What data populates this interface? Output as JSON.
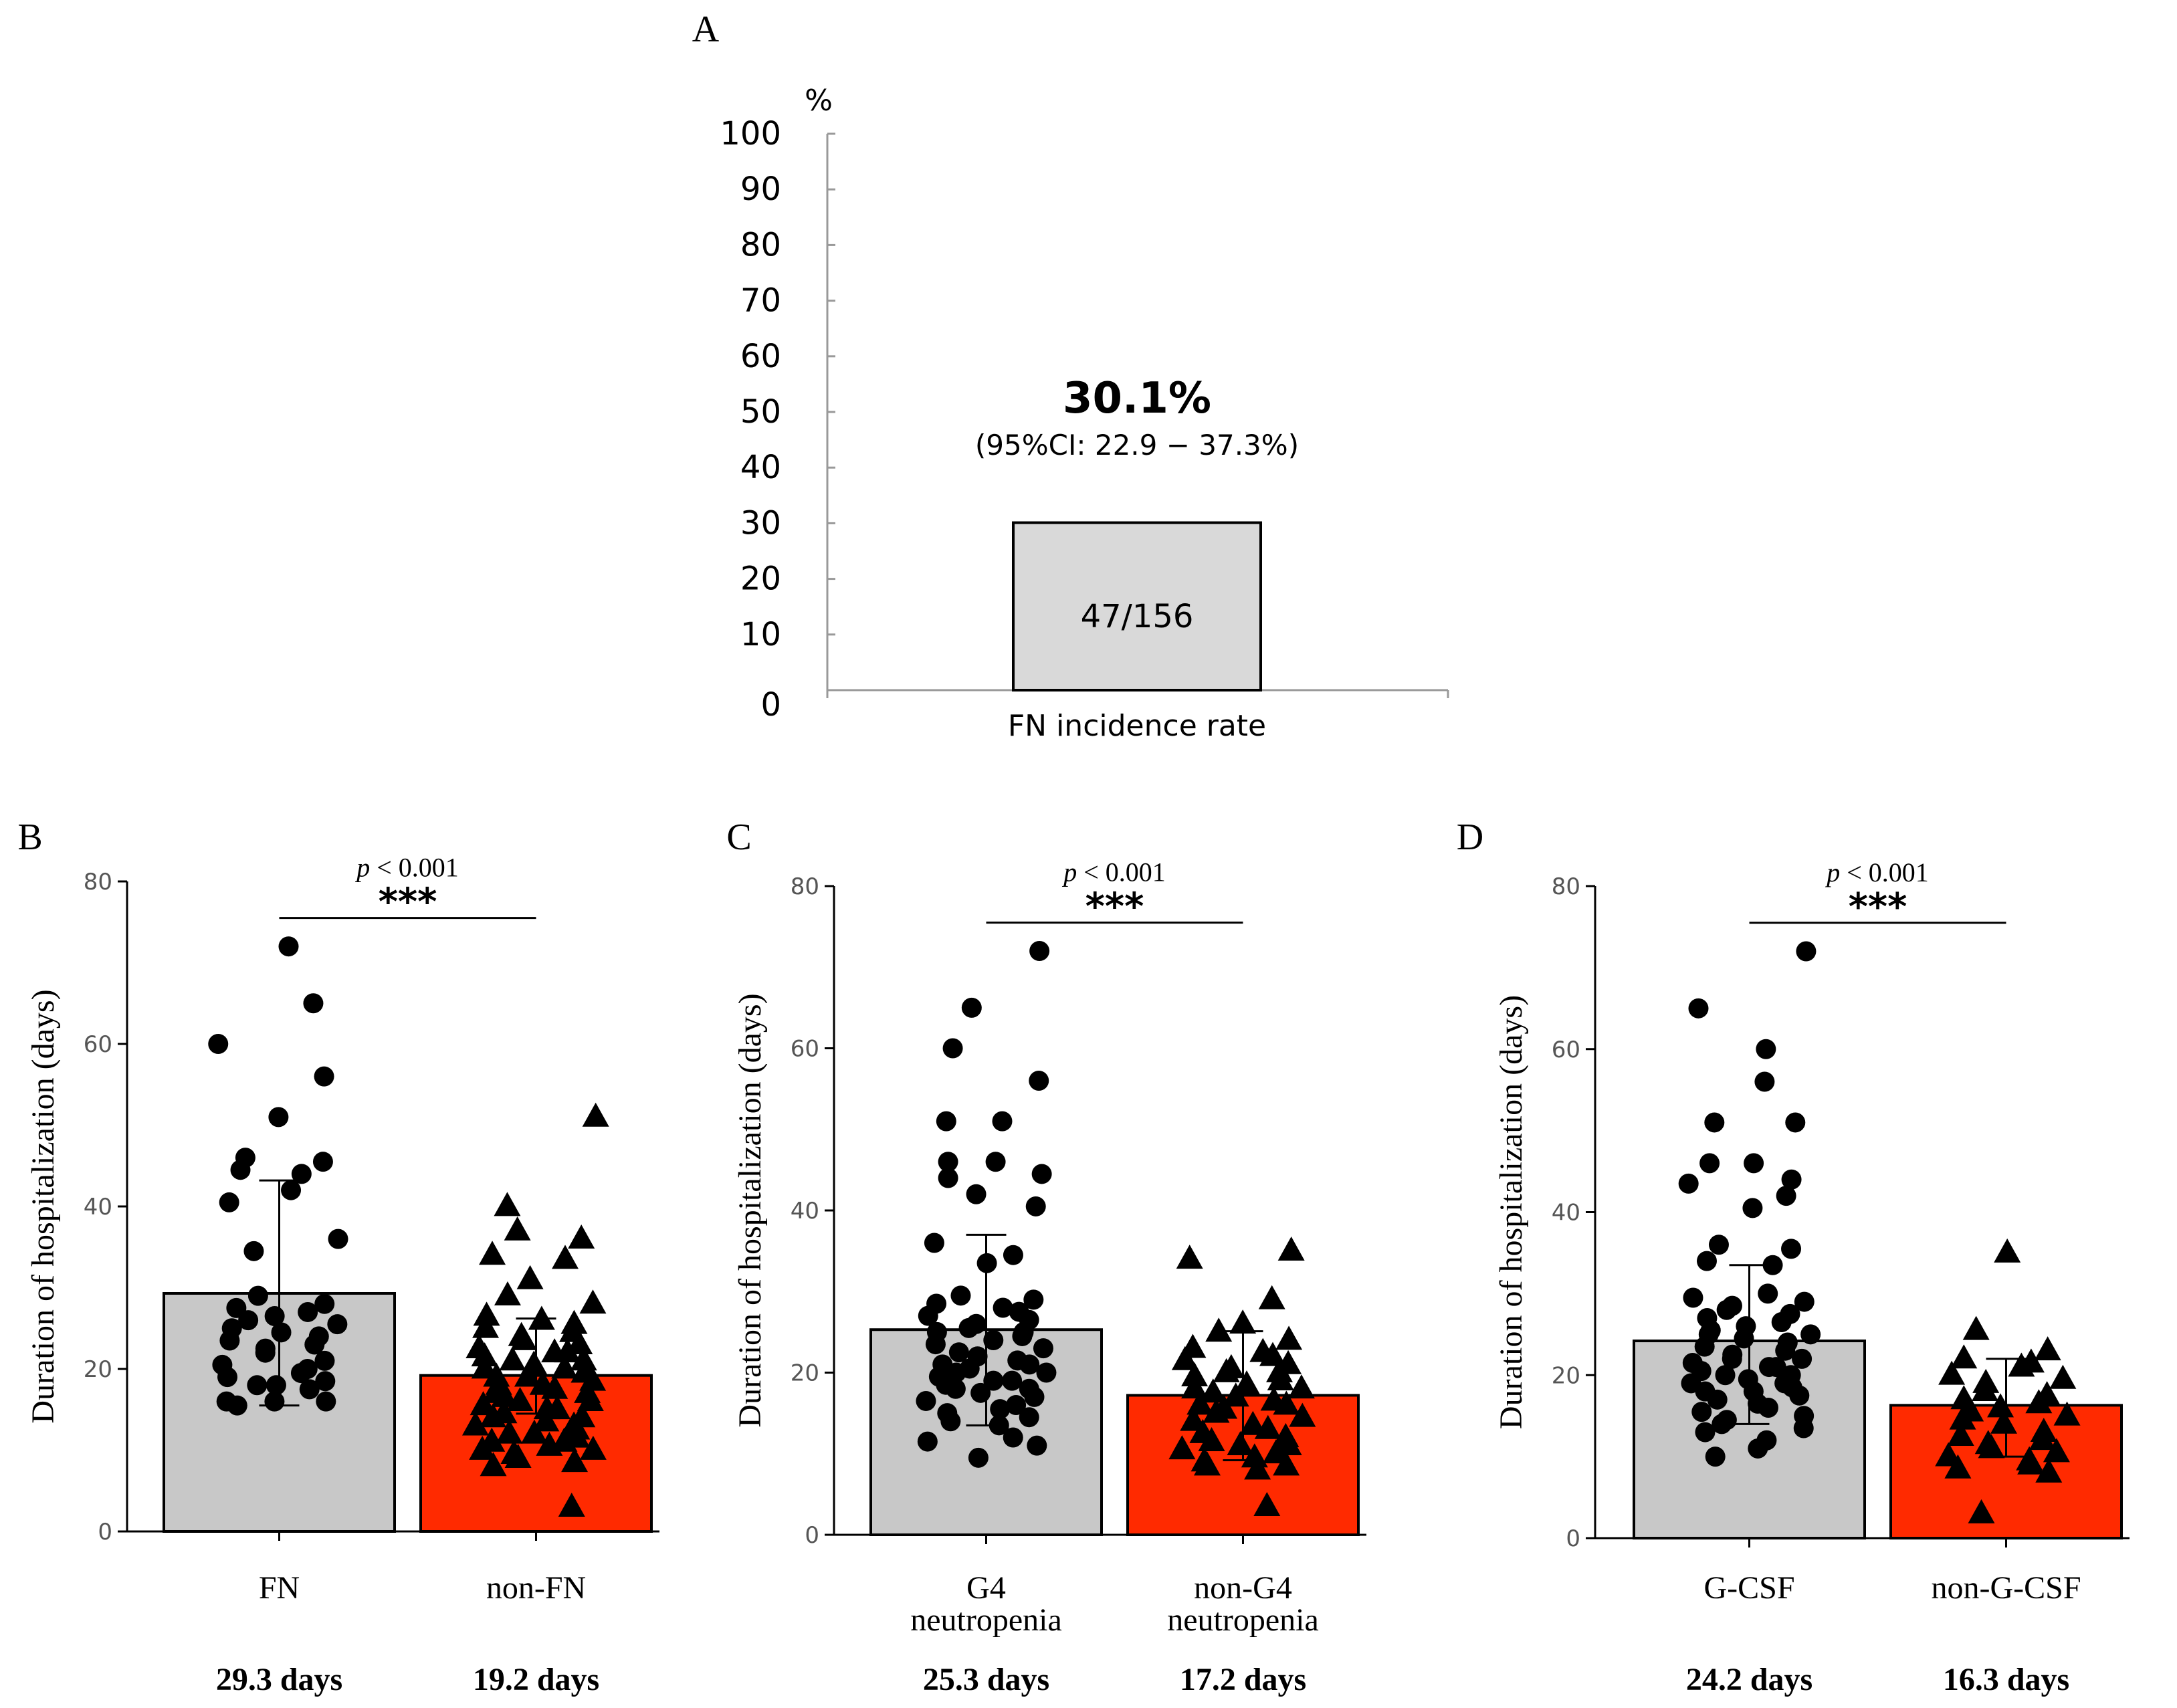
{
  "colors": {
    "gray_bar": "#c8c8c8",
    "gray_bar_a": "#d9d9d9",
    "red_bar": "#ff2a00",
    "ink": "#000000",
    "axis_gray": "#999999"
  },
  "chart_data": [
    {
      "panel": "A",
      "type": "bar",
      "ylabel_unit": "%",
      "ylim": [
        0,
        100
      ],
      "yticks": [
        0,
        10,
        20,
        30,
        40,
        50,
        60,
        70,
        80,
        90,
        100
      ],
      "ytick_labels": [
        "0",
        "10",
        "20",
        "30",
        "40",
        "50",
        "60",
        "70",
        "80",
        "90",
        "100"
      ],
      "categories": [
        "FN incidence rate"
      ],
      "values": [
        30.1
      ],
      "bar_label": "47/156",
      "headline": "30.1%",
      "ci_text": "(95%CI: 22.9 − 37.3%)"
    },
    {
      "panel": "B",
      "type": "bar",
      "ylabel": "Duration of hospitalization (days)",
      "ylim": [
        0,
        80
      ],
      "yticks": [
        0,
        20,
        40,
        60,
        80
      ],
      "ytick_labels": [
        "0",
        "20",
        "40",
        "60",
        "80"
      ],
      "categories": [
        "FN",
        "non-FN"
      ],
      "category_lines": [
        [
          "FN"
        ],
        [
          "non-FN"
        ]
      ],
      "values": [
        29.3,
        19.2
      ],
      "value_labels": [
        "29.3 days",
        "19.2 days"
      ],
      "error_bars": [
        [
          15.5,
          43.2
        ],
        [
          14.5,
          26.2
        ]
      ],
      "significance": "***",
      "p_value_text": "< 0.001",
      "p_symbol": "p",
      "points": [
        {
          "marker": "circle",
          "y": [
            72,
            65,
            60,
            56,
            51,
            46,
            45.5,
            44.5,
            44,
            42,
            40.5,
            36,
            34.5,
            29,
            28,
            27.5,
            27,
            26.5,
            26,
            25.5,
            25,
            24.5,
            24,
            23.5,
            23,
            22.5,
            22,
            21,
            20.5,
            20,
            19.5,
            19,
            18.5,
            18,
            18,
            17.5,
            16,
            16,
            16,
            15.5
          ]
        },
        {
          "marker": "triangle",
          "y": [
            51,
            40,
            37,
            36,
            34,
            33.5,
            31,
            29,
            28,
            26.5,
            26,
            25.5,
            25,
            24.5,
            24,
            23.5,
            23,
            22.5,
            22,
            22,
            21.5,
            21,
            21,
            20.5,
            20,
            20,
            19.5,
            19,
            19,
            18.5,
            18,
            18,
            17.5,
            17,
            17,
            16.5,
            16,
            16,
            15.5,
            15,
            15,
            14.5,
            14,
            14,
            13.5,
            13,
            13,
            12.5,
            12,
            12,
            11.5,
            11,
            11,
            10.5,
            10,
            10,
            9.5,
            9,
            8.5,
            8,
            3
          ]
        }
      ]
    },
    {
      "panel": "C",
      "type": "bar",
      "ylabel": "Duration of hospitalization (days)",
      "ylim": [
        0,
        80
      ],
      "yticks": [
        0,
        20,
        40,
        60,
        80
      ],
      "ytick_labels": [
        "0",
        "20",
        "40",
        "60",
        "80"
      ],
      "categories": [
        "G4 neutropenia",
        "non-G4 neutropenia"
      ],
      "category_lines": [
        [
          "G4",
          "neutropenia"
        ],
        [
          "non-G4",
          "neutropenia"
        ]
      ],
      "values": [
        25.3,
        17.2
      ],
      "value_labels": [
        "25.3 days",
        "17.2 days"
      ],
      "error_bars": [
        [
          13.5,
          37.0
        ],
        [
          9.2,
          25.1
        ]
      ],
      "significance": "***",
      "p_value_text": "< 0.001",
      "p_symbol": "p",
      "points": [
        {
          "marker": "circle",
          "y": [
            72,
            65,
            60,
            56,
            51,
            51,
            46,
            46,
            44.5,
            44,
            42,
            40.5,
            36,
            34.5,
            33.5,
            29.5,
            29,
            28.5,
            28,
            27.5,
            27,
            26.5,
            26,
            25.5,
            25,
            25,
            24.5,
            24,
            23.5,
            23,
            22.5,
            22,
            21.5,
            21,
            21,
            20.5,
            20,
            20,
            19.5,
            19,
            19,
            18.5,
            18,
            18,
            17.5,
            17,
            16.5,
            16,
            15.5,
            15,
            14.5,
            14,
            13.5,
            12,
            11.5,
            11,
            9.5
          ]
        },
        {
          "marker": "triangle",
          "y": [
            35,
            34,
            29,
            26,
            25,
            24,
            23,
            22.5,
            22,
            21.5,
            21,
            20.5,
            20,
            20,
            19.5,
            19,
            18.5,
            18,
            18,
            17.5,
            17,
            16.5,
            16,
            16,
            15.5,
            15,
            14.5,
            14,
            13.5,
            13,
            12.5,
            12,
            11.5,
            11,
            11,
            10.5,
            10,
            9.5,
            9,
            8.5,
            8.5,
            8,
            3.5
          ]
        }
      ]
    },
    {
      "panel": "D",
      "type": "bar",
      "ylabel": "Duration of hospitalization (days)",
      "ylim": [
        0,
        80
      ],
      "yticks": [
        0,
        20,
        40,
        60,
        80
      ],
      "ytick_labels": [
        "0",
        "20",
        "40",
        "60",
        "80"
      ],
      "categories": [
        "G-CSF",
        "non-G-CSF"
      ],
      "category_lines": [
        [
          "G-CSF"
        ],
        [
          "non-G-CSF"
        ]
      ],
      "values": [
        24.2,
        16.3
      ],
      "value_labels": [
        "24.2 days",
        "16.3 days"
      ],
      "error_bars": [
        [
          14.0,
          33.5
        ],
        [
          10.0,
          22.0
        ]
      ],
      "significance": "***",
      "p_value_text": "< 0.001",
      "p_symbol": "p",
      "points": [
        {
          "marker": "circle",
          "y": [
            72,
            65,
            60,
            56,
            51,
            51,
            46,
            46,
            44,
            43.5,
            42,
            40.5,
            36,
            35.5,
            34,
            33.5,
            30,
            29.5,
            29,
            28.5,
            28,
            27.5,
            27,
            26.5,
            26,
            25.5,
            25,
            25,
            24.5,
            24,
            23.5,
            23,
            22.5,
            22,
            22,
            21.5,
            21,
            21,
            20.5,
            20,
            20,
            19.5,
            19,
            19,
            18.5,
            18,
            18,
            17.5,
            17,
            16.5,
            16,
            15.5,
            15,
            14.5,
            14,
            13.5,
            13,
            12,
            11,
            10
          ]
        },
        {
          "marker": "triangle",
          "y": [
            35,
            25.5,
            23,
            22,
            21.5,
            21,
            20,
            19.5,
            19,
            18,
            17.5,
            17,
            16.5,
            16,
            15.5,
            15,
            14.5,
            14,
            13,
            12.5,
            12,
            11.5,
            11,
            10.5,
            10,
            9.5,
            9,
            8.5,
            8,
            3
          ]
        }
      ]
    }
  ]
}
